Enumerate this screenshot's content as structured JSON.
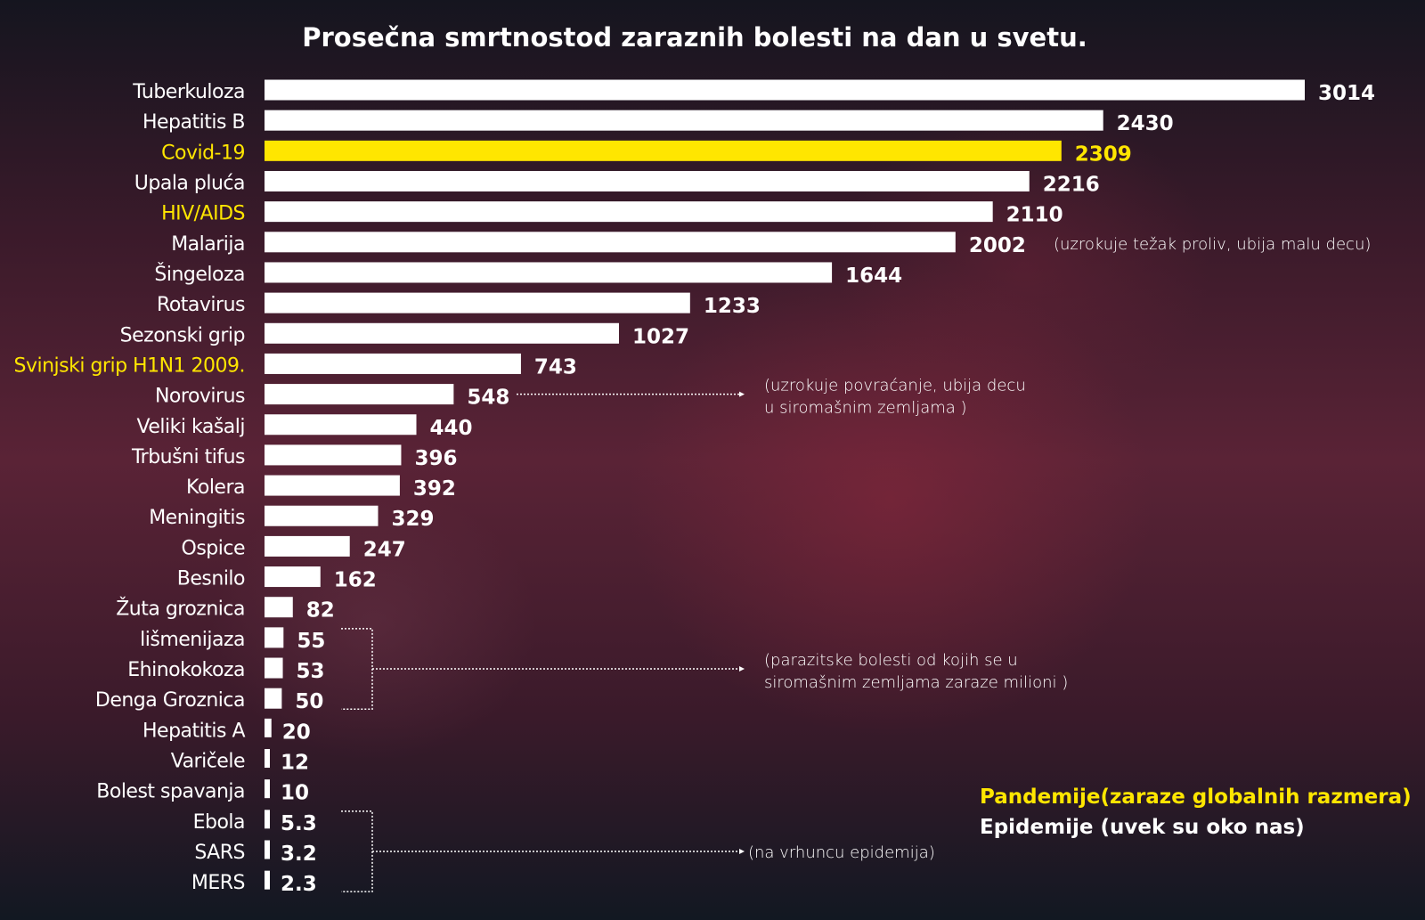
{
  "chart_data": {
    "type": "bar",
    "orientation": "horizontal",
    "title": "Prosečna smrtnostod zaraznih bolesti na dan u svetu.",
    "categories": [
      "Tuberkuloza",
      "Hepatitis B",
      "Covid-19",
      "Upala pluća",
      "HIV/AIDS",
      "Malarija",
      "Šingeloza",
      "Rotavirus",
      "Sezonski grip",
      "Svinjski grip H1N1 2009.",
      "Norovirus",
      "Veliki kašalj",
      "Trbušni tifus",
      "Kolera",
      "Meningitis",
      "Ospice",
      "Besnilo",
      "Žuta groznica",
      "lišmenijaza",
      "Ehinokokoza",
      "Denga Groznica",
      "Hepatitis A",
      "Varičele",
      "Bolest spavanja",
      "Ebola",
      "SARS",
      "MERS"
    ],
    "values": [
      3014,
      2430,
      2309,
      2216,
      2110,
      2002,
      1644,
      1233,
      1027,
      743,
      548,
      440,
      396,
      392,
      329,
      247,
      162,
      82,
      55,
      53,
      50,
      20,
      12,
      10,
      5.3,
      3.2,
      2.3
    ],
    "value_labels": [
      "3014",
      "2430",
      "2309",
      "2216",
      "2110",
      "2002",
      "1644",
      "1233",
      "1027",
      "743",
      "548",
      "440",
      "396",
      "392",
      "329",
      "247",
      "162",
      "82",
      "55",
      "53",
      "50",
      "20",
      "12",
      "10",
      "5.3",
      "3.2",
      "2.3"
    ],
    "highlight": {
      "pandemic": [
        "Covid-19",
        "HIV/AIDS",
        "Svinjski grip H1N1 2009."
      ],
      "bar_highlight": [
        "Covid-19"
      ]
    },
    "annotations": [
      {
        "target": [
          "Malarija"
        ],
        "text": [
          "(uzrokuje težak proliv, ubija malu decu)"
        ]
      },
      {
        "target": [
          "Norovirus"
        ],
        "text": [
          "(uzrokuje povraćanje, ubija decu",
          "u siromašnim zemljama )"
        ]
      },
      {
        "target": [
          "lišmenijaza",
          "Ehinokokoza",
          "Denga Groznica"
        ],
        "text": [
          "(parazitske bolesti od kojih se u",
          "siromašnim zemljama zaraze  milioni )"
        ]
      },
      {
        "target": [
          "Ebola",
          "SARS",
          "MERS"
        ],
        "text": [
          "(na vrhuncu epidemija)"
        ]
      }
    ],
    "legend": [
      {
        "label": "Pandemije(zaraze globalnih razmera)",
        "color": "#ffe600"
      },
      {
        "label": "Epidemije (uvek su oko nas)",
        "color": "#ffffff"
      }
    ],
    "legend_position": "bottom-right",
    "grid": false,
    "colors": {
      "bar": "#ffffff",
      "highlight": "#ffe600",
      "text": "#ffffff"
    }
  }
}
